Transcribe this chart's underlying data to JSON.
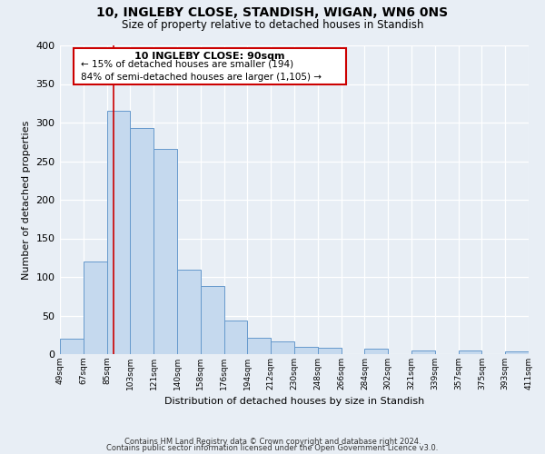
{
  "title": "10, INGLEBY CLOSE, STANDISH, WIGAN, WN6 0NS",
  "subtitle": "Size of property relative to detached houses in Standish",
  "xlabel": "Distribution of detached houses by size in Standish",
  "ylabel": "Number of detached properties",
  "bar_labels": [
    "49sqm",
    "67sqm",
    "85sqm",
    "103sqm",
    "121sqm",
    "140sqm",
    "158sqm",
    "176sqm",
    "194sqm",
    "212sqm",
    "230sqm",
    "248sqm",
    "266sqm",
    "284sqm",
    "302sqm",
    "321sqm",
    "339sqm",
    "357sqm",
    "375sqm",
    "393sqm",
    "411sqm"
  ],
  "bar_values": [
    20,
    120,
    315,
    293,
    266,
    110,
    88,
    44,
    21,
    17,
    9,
    8,
    0,
    7,
    0,
    5,
    0,
    5,
    0,
    3
  ],
  "bar_color": "#c5d9ee",
  "bar_edge_color": "#6699cc",
  "ylim": [
    0,
    400
  ],
  "yticks": [
    0,
    50,
    100,
    150,
    200,
    250,
    300,
    350,
    400
  ],
  "property_line_label": "10 INGLEBY CLOSE: 90sqm",
  "annotation_line1": "← 15% of detached houses are smaller (194)",
  "annotation_line2": "84% of semi-detached houses are larger (1,105) →",
  "box_color": "#ffffff",
  "box_edge_color": "#cc0000",
  "vline_color": "#cc0000",
  "background_color": "#e8eef5",
  "grid_color": "#ffffff",
  "footer1": "Contains HM Land Registry data © Crown copyright and database right 2024.",
  "footer2": "Contains public sector information licensed under the Open Government Licence v3.0."
}
